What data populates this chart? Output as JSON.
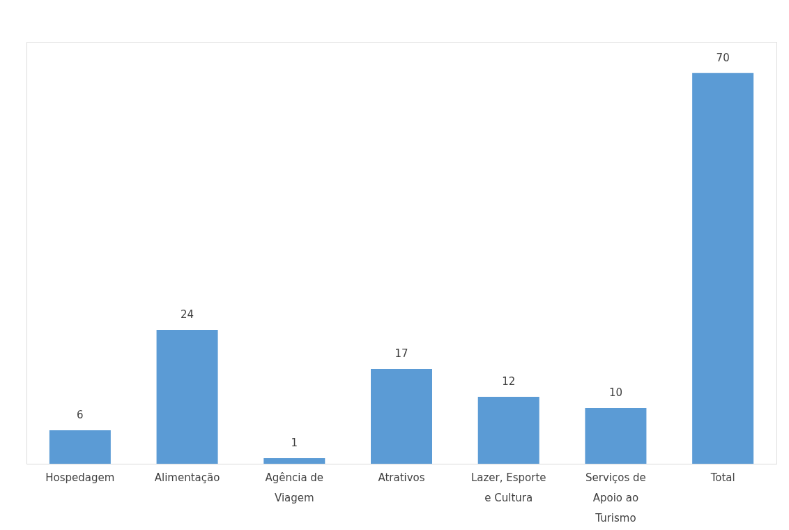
{
  "chart_data": {
    "type": "bar",
    "categories": [
      "Hospedagem",
      "Alimentação",
      "Agência de Viagem",
      "Atrativos",
      "Lazer, Esporte e Cultura",
      "Serviços de Apoio ao Turismo",
      "Total"
    ],
    "values": [
      6,
      24,
      1,
      17,
      12,
      10,
      70
    ],
    "color": "#5b9bd5",
    "data_labels": true
  }
}
